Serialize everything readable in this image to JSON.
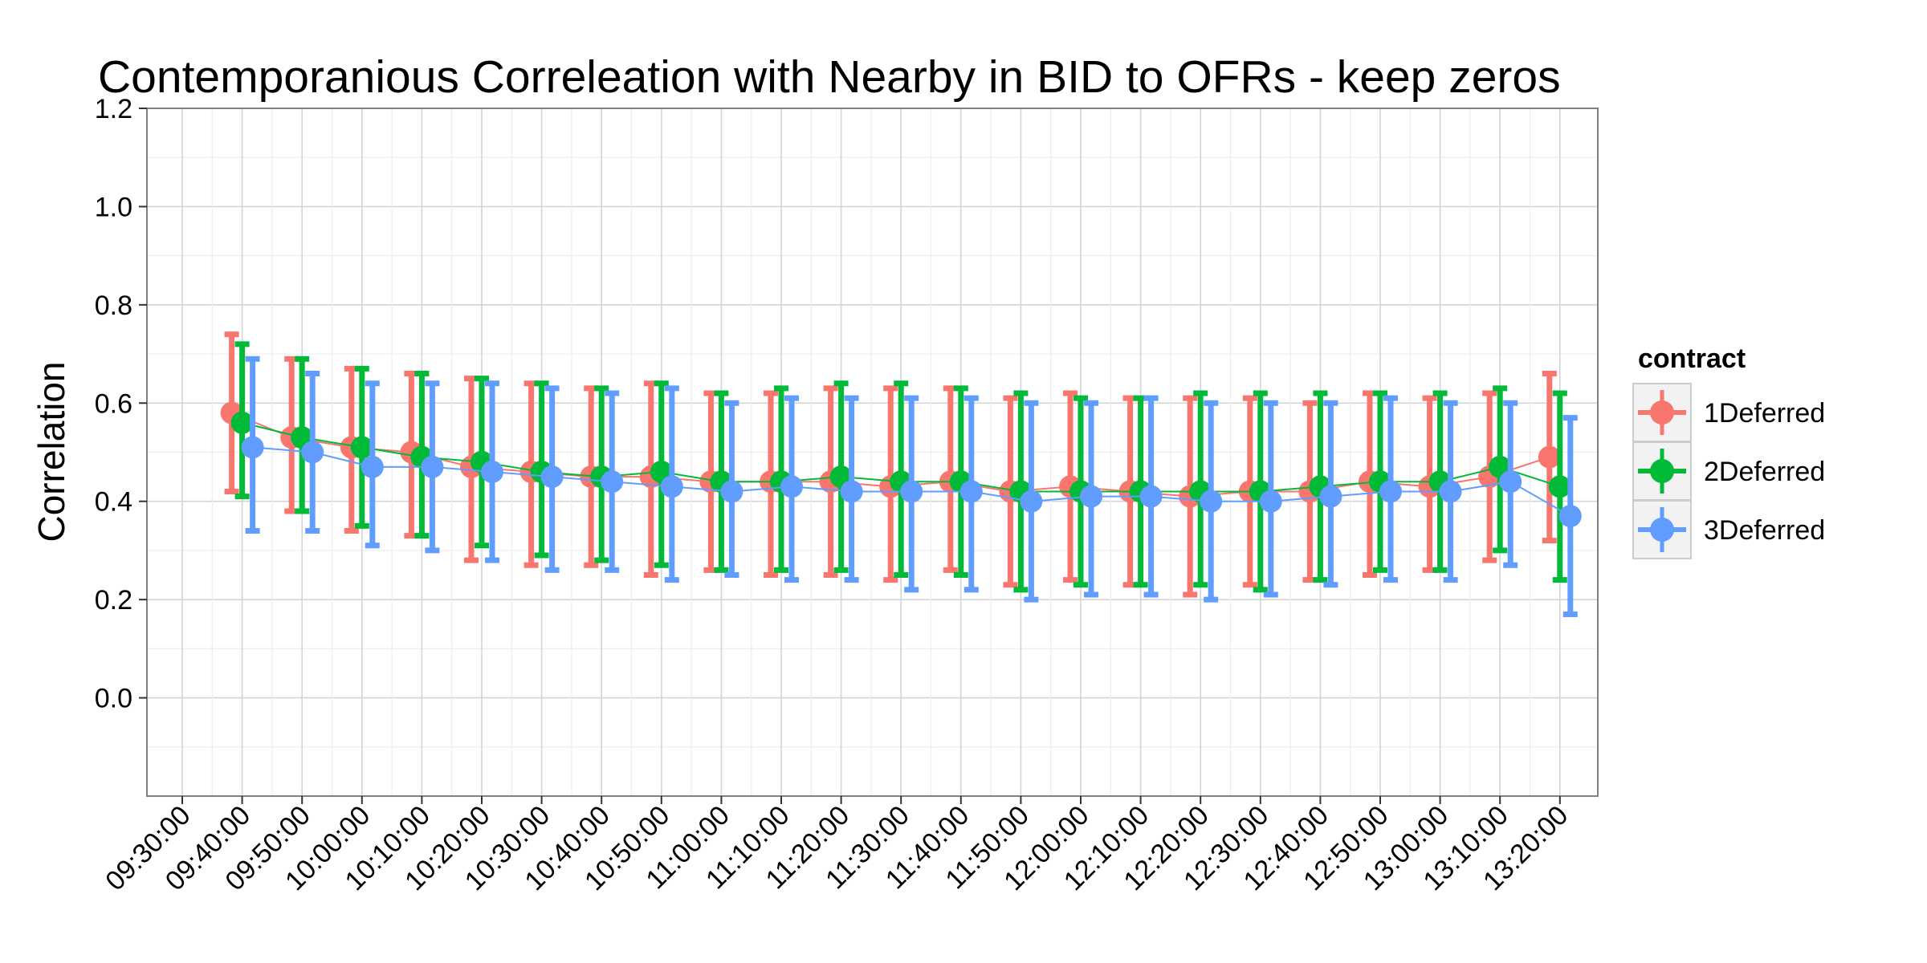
{
  "chart_data": {
    "type": "line",
    "title": "Contemporanious Correleation with Nearby in BID to OFRs - keep zeros",
    "xlabel": "",
    "ylabel": "Correlation",
    "x_ticks": [
      "09:30:00",
      "09:40:00",
      "09:50:00",
      "10:00:00",
      "10:10:00",
      "10:20:00",
      "10:30:00",
      "10:40:00",
      "10:50:00",
      "11:00:00",
      "11:10:00",
      "11:20:00",
      "11:30:00",
      "11:40:00",
      "11:50:00",
      "12:00:00",
      "12:10:00",
      "12:20:00",
      "12:30:00",
      "12:40:00",
      "12:50:00",
      "13:00:00",
      "13:10:00",
      "13:20:00"
    ],
    "x_points": [
      "09:40:00",
      "09:50:00",
      "10:00:00",
      "10:10:00",
      "10:20:00",
      "10:30:00",
      "10:40:00",
      "10:50:00",
      "11:00:00",
      "11:10:00",
      "11:20:00",
      "11:30:00",
      "11:40:00",
      "11:50:00",
      "12:00:00",
      "12:10:00",
      "12:20:00",
      "12:30:00",
      "12:40:00",
      "12:50:00",
      "13:00:00",
      "13:10:00",
      "13:20:00"
    ],
    "y_ticks": [
      "0.0",
      "0.2",
      "0.4",
      "0.6",
      "0.8",
      "1.0",
      "1.2"
    ],
    "ylim": [
      -0.2,
      1.2
    ],
    "grid": true,
    "legend_title": "contract",
    "legend_position": "right",
    "series": [
      {
        "name": "1Deferred",
        "color": "#F8766D",
        "values": [
          0.58,
          0.53,
          0.51,
          0.5,
          0.47,
          0.46,
          0.45,
          0.45,
          0.44,
          0.44,
          0.44,
          0.43,
          0.44,
          0.42,
          0.43,
          0.42,
          0.41,
          0.42,
          0.42,
          0.44,
          0.43,
          0.45,
          0.49
        ],
        "upper": [
          0.74,
          0.69,
          0.67,
          0.66,
          0.65,
          0.64,
          0.63,
          0.64,
          0.62,
          0.62,
          0.63,
          0.63,
          0.63,
          0.61,
          0.62,
          0.61,
          0.61,
          0.61,
          0.6,
          0.62,
          0.61,
          0.62,
          0.66
        ],
        "lower": [
          0.42,
          0.38,
          0.34,
          0.33,
          0.28,
          0.27,
          0.27,
          0.25,
          0.26,
          0.25,
          0.25,
          0.24,
          0.26,
          0.23,
          0.24,
          0.23,
          0.21,
          0.23,
          0.24,
          0.25,
          0.26,
          0.28,
          0.32
        ]
      },
      {
        "name": "2Deferred",
        "color": "#00BA38",
        "values": [
          0.56,
          0.53,
          0.51,
          0.49,
          0.48,
          0.46,
          0.45,
          0.46,
          0.44,
          0.44,
          0.45,
          0.44,
          0.44,
          0.42,
          0.42,
          0.42,
          0.42,
          0.42,
          0.43,
          0.44,
          0.44,
          0.47,
          0.43
        ],
        "upper": [
          0.72,
          0.69,
          0.67,
          0.66,
          0.65,
          0.64,
          0.63,
          0.64,
          0.62,
          0.63,
          0.64,
          0.64,
          0.63,
          0.62,
          0.61,
          0.61,
          0.62,
          0.62,
          0.62,
          0.62,
          0.62,
          0.63,
          0.62
        ],
        "lower": [
          0.41,
          0.38,
          0.35,
          0.33,
          0.31,
          0.29,
          0.28,
          0.27,
          0.26,
          0.26,
          0.26,
          0.25,
          0.25,
          0.22,
          0.23,
          0.23,
          0.23,
          0.22,
          0.24,
          0.26,
          0.26,
          0.3,
          0.24
        ]
      },
      {
        "name": "3Deferred",
        "color": "#619CFF",
        "values": [
          0.51,
          0.5,
          0.47,
          0.47,
          0.46,
          0.45,
          0.44,
          0.43,
          0.42,
          0.43,
          0.42,
          0.42,
          0.42,
          0.4,
          0.41,
          0.41,
          0.4,
          0.4,
          0.41,
          0.42,
          0.42,
          0.44,
          0.37
        ],
        "upper": [
          0.69,
          0.66,
          0.64,
          0.64,
          0.64,
          0.63,
          0.62,
          0.63,
          0.6,
          0.61,
          0.61,
          0.61,
          0.61,
          0.6,
          0.6,
          0.61,
          0.6,
          0.6,
          0.6,
          0.61,
          0.6,
          0.6,
          0.57
        ],
        "lower": [
          0.34,
          0.34,
          0.31,
          0.3,
          0.28,
          0.26,
          0.26,
          0.24,
          0.25,
          0.24,
          0.24,
          0.22,
          0.22,
          0.2,
          0.21,
          0.21,
          0.2,
          0.21,
          0.23,
          0.24,
          0.24,
          0.27,
          0.17
        ]
      }
    ]
  }
}
